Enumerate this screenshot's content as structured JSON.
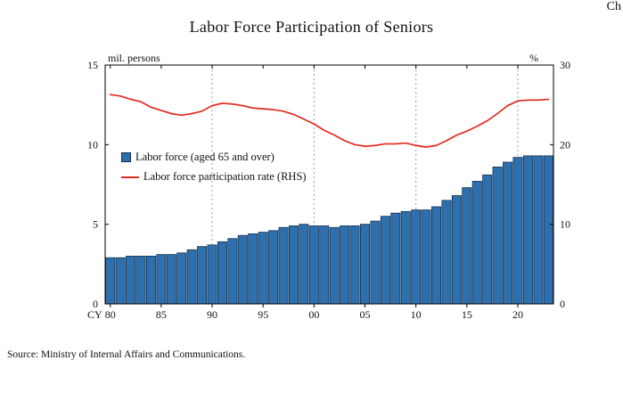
{
  "page": {
    "corner_text": "Ch",
    "source": "Source: Ministry of Internal Affairs and Communications."
  },
  "chart_data": {
    "type": "bar+line",
    "title": "Labor Force Participation of Seniors",
    "left_axis": {
      "label": "mil. persons",
      "ticks": [
        0,
        5,
        10,
        15
      ],
      "range": [
        0,
        15
      ]
    },
    "right_axis": {
      "label": "%",
      "ticks": [
        0,
        10,
        20,
        30
      ],
      "range": [
        0,
        30
      ]
    },
    "x_axis": {
      "prefix": "CY",
      "tick_labels": [
        "80",
        "85",
        "90",
        "95",
        "00",
        "05",
        "10",
        "15",
        "20"
      ],
      "tick_years": [
        1980,
        1985,
        1990,
        1995,
        2000,
        2005,
        2010,
        2015,
        2020
      ],
      "gridline_years": [
        1990,
        2000,
        2010,
        2020
      ]
    },
    "years": [
      1980,
      1981,
      1982,
      1983,
      1984,
      1985,
      1986,
      1987,
      1988,
      1989,
      1990,
      1991,
      1992,
      1993,
      1994,
      1995,
      1996,
      1997,
      1998,
      1999,
      2000,
      2001,
      2002,
      2003,
      2004,
      2005,
      2006,
      2007,
      2008,
      2009,
      2010,
      2011,
      2012,
      2013,
      2014,
      2015,
      2016,
      2017,
      2018,
      2019,
      2020,
      2021,
      2022,
      2023
    ],
    "series": [
      {
        "name": "Labor force (aged 65 and over)",
        "type": "bar",
        "axis": "left",
        "color": "#2e6fad",
        "border": "#14314f",
        "values": [
          2.9,
          2.9,
          3.0,
          3.0,
          3.0,
          3.1,
          3.1,
          3.2,
          3.4,
          3.6,
          3.7,
          3.9,
          4.1,
          4.3,
          4.4,
          4.5,
          4.6,
          4.8,
          4.9,
          5.0,
          4.9,
          4.9,
          4.8,
          4.9,
          4.9,
          5.0,
          5.2,
          5.5,
          5.7,
          5.8,
          5.9,
          5.9,
          6.1,
          6.5,
          6.8,
          7.3,
          7.7,
          8.1,
          8.6,
          8.9,
          9.2,
          9.3,
          9.3,
          9.3
        ]
      },
      {
        "name": "Labor force participation rate (RHS)",
        "type": "line",
        "axis": "right",
        "color": "#e02a1e",
        "values": [
          26.3,
          26.1,
          25.7,
          25.4,
          24.7,
          24.3,
          23.9,
          23.7,
          23.9,
          24.2,
          24.9,
          25.2,
          25.1,
          24.9,
          24.6,
          24.5,
          24.4,
          24.2,
          23.8,
          23.2,
          22.6,
          21.8,
          21.2,
          20.5,
          20.0,
          19.8,
          19.9,
          20.1,
          20.1,
          20.2,
          19.9,
          19.7,
          19.9,
          20.5,
          21.2,
          21.7,
          22.3,
          23.0,
          23.9,
          24.9,
          25.5,
          25.6,
          25.6,
          25.7
        ]
      }
    ],
    "legend_position": "inside-left",
    "grid": "vertical-dashed"
  }
}
